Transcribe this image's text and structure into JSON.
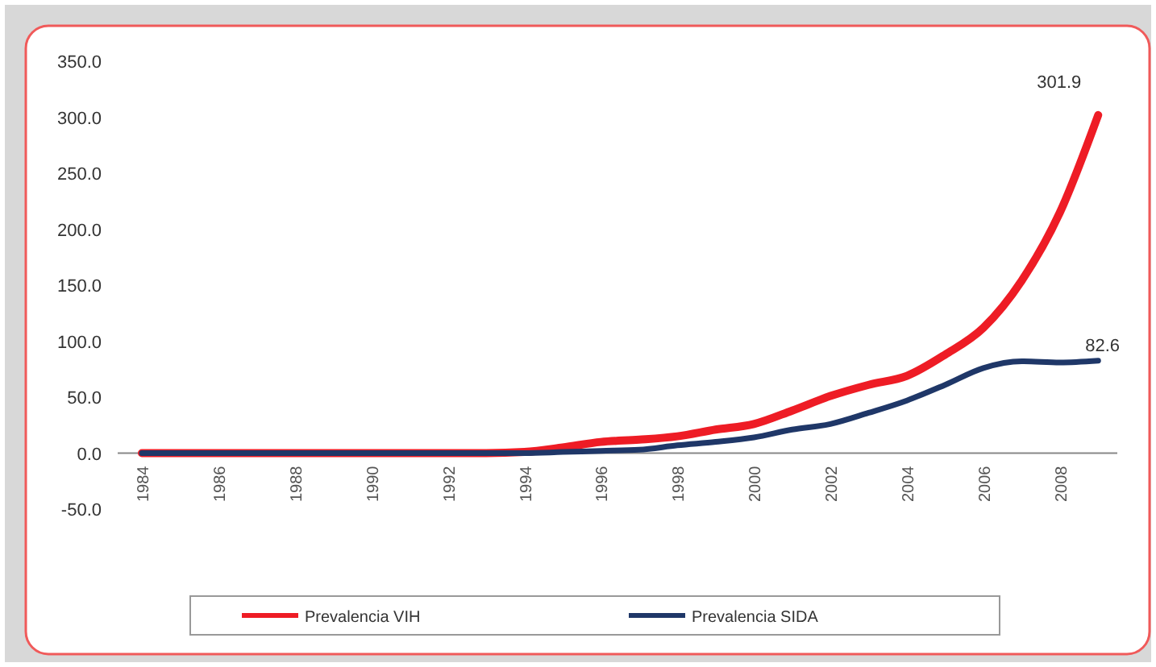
{
  "chart_data": {
    "type": "line",
    "categories": [
      "1984",
      null,
      "1986",
      null,
      "1988",
      null,
      "1990",
      null,
      "1992",
      null,
      "1994",
      null,
      "1996",
      null,
      "1998",
      null,
      "2000",
      null,
      "2002",
      null,
      "2004",
      null,
      "2006",
      null,
      "2008",
      null
    ],
    "series": [
      {
        "name": "Prevalencia VIH",
        "color": "#ee1c25",
        "values": [
          0,
          0,
          0,
          0,
          0,
          0,
          0,
          0,
          0,
          0,
          1,
          5,
          10,
          12,
          15,
          21,
          26,
          38,
          51,
          61,
          69,
          88,
          112,
          154,
          215,
          301.9
        ],
        "value_labels": [
          null,
          null,
          null,
          null,
          null,
          null,
          null,
          null,
          null,
          null,
          null,
          null,
          null,
          null,
          null,
          null,
          null,
          null,
          null,
          null,
          null,
          null,
          null,
          null,
          null,
          "301.9"
        ]
      },
      {
        "name": "Prevalencia SIDA",
        "color": "#1f3768",
        "values": [
          0,
          0,
          0,
          0,
          0,
          0,
          0,
          0,
          0,
          0,
          0,
          1,
          2,
          3,
          7,
          10,
          14,
          21,
          26,
          36,
          47,
          61,
          76,
          82,
          81,
          82.6
        ],
        "value_labels": [
          null,
          null,
          null,
          null,
          null,
          null,
          null,
          null,
          null,
          null,
          null,
          null,
          null,
          null,
          null,
          null,
          null,
          null,
          null,
          null,
          null,
          null,
          null,
          null,
          null,
          "82.6"
        ]
      }
    ],
    "ylim": [
      -50,
      350
    ],
    "yticks": [
      {
        "value": -50,
        "label": "-50.0"
      },
      {
        "value": 0,
        "label": "0.0"
      },
      {
        "value": 50,
        "label": "50.0"
      },
      {
        "value": 100,
        "label": "100.0"
      },
      {
        "value": 150,
        "label": "150.0"
      },
      {
        "value": 200,
        "label": "200.0"
      },
      {
        "value": 250,
        "label": "250.0"
      },
      {
        "value": 300,
        "label": "300.0"
      },
      {
        "value": 350,
        "label": "350.0"
      }
    ],
    "grid": false,
    "legend": "bottom",
    "marker": "none",
    "line_style": "solid"
  }
}
